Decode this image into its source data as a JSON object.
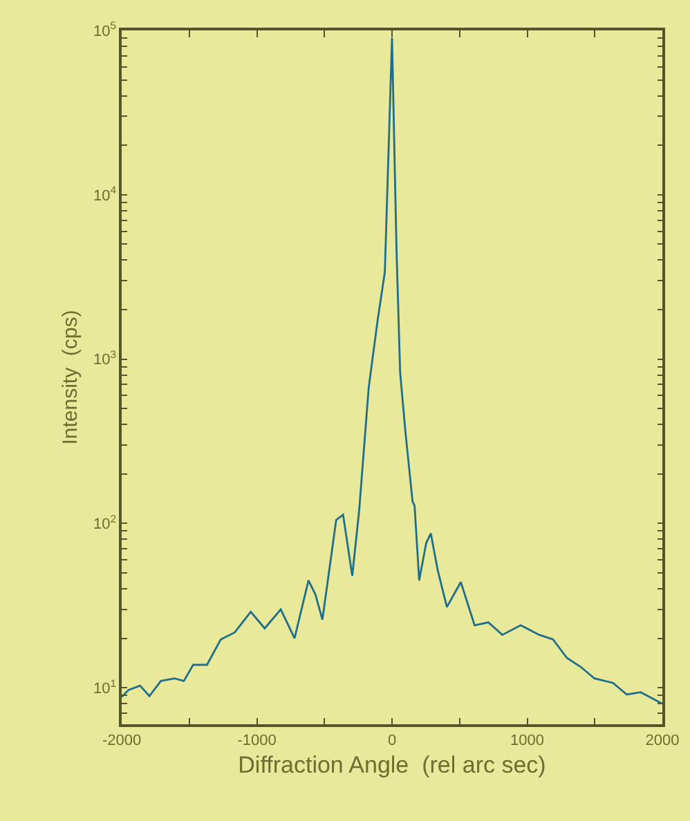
{
  "chart_data": {
    "type": "line",
    "xlabel": "Diffraction Angle  (rel arc sec)",
    "ylabel": "Intensity  (cps)",
    "log": "y",
    "grid": false,
    "legend": false,
    "marker": "none",
    "line_style": "solid",
    "x": [
      -2000,
      -1949,
      -1864,
      -1795,
      -1710,
      -1608,
      -1540,
      -1471,
      -1369,
      -1267,
      -1164,
      -1045,
      -942,
      -823,
      -721,
      -618,
      -567,
      -515,
      -413,
      -362,
      -294,
      -243,
      -172,
      -104,
      -53,
      0,
      33,
      60,
      100,
      152,
      167,
      201,
      253,
      287,
      338,
      406,
      509,
      611,
      713,
      816,
      952,
      1089,
      1191,
      1294,
      1396,
      1498,
      1635,
      1737,
      1840,
      2000
    ],
    "series": [
      {
        "color": "#1f6f8b",
        "values": [
          8.8,
          9.7,
          10.3,
          8.9,
          11.0,
          11.4,
          11.0,
          13.8,
          13.8,
          19.7,
          21.7,
          29,
          23,
          30,
          20,
          45,
          37,
          26,
          105,
          113,
          48,
          120,
          676,
          1780,
          3390,
          90000,
          4700,
          830,
          355,
          136,
          128,
          45,
          76,
          87,
          52,
          31,
          44,
          24,
          25,
          21,
          24,
          21,
          19.7,
          15.2,
          13.4,
          11.4,
          10.7,
          9.1,
          9.4,
          8.0
        ]
      }
    ],
    "xlim": [
      -2000,
      2000
    ],
    "xticks": [
      -2000,
      {
        "value": -1500,
        "label": null
      },
      -1000,
      {
        "value": -500,
        "label": null
      },
      0,
      {
        "value": 500,
        "label": null
      },
      1000,
      {
        "value": 1500,
        "label": null
      },
      2000
    ],
    "ylim": [
      6,
      100000
    ],
    "yticks": [
      {
        "value": 6,
        "label": null
      },
      {
        "value": 7,
        "label": null
      },
      {
        "value": 8,
        "label": null
      },
      {
        "value": 9,
        "label": null
      },
      {
        "value": 10,
        "label": "10$^{1}$"
      },
      {
        "value": 20,
        "label": null
      },
      {
        "value": 30,
        "label": null
      },
      {
        "value": 40,
        "label": null
      },
      {
        "value": 50,
        "label": null
      },
      {
        "value": 60,
        "label": null
      },
      {
        "value": 70,
        "label": null
      },
      {
        "value": 80,
        "label": null
      },
      {
        "value": 90,
        "label": null
      },
      {
        "value": 100,
        "label": "10$^{2}$"
      },
      {
        "value": 200,
        "label": null
      },
      {
        "value": 300,
        "label": null
      },
      {
        "value": 400,
        "label": null
      },
      {
        "value": 500,
        "label": null
      },
      {
        "value": 600,
        "label": null
      },
      {
        "value": 700,
        "label": null
      },
      {
        "value": 800,
        "label": null
      },
      {
        "value": 900,
        "label": null
      },
      {
        "value": 1000,
        "label": "10$^{3}$"
      },
      {
        "value": 2000,
        "label": null
      },
      {
        "value": 3000,
        "label": null
      },
      {
        "value": 4000,
        "label": null
      },
      {
        "value": 5000,
        "label": null
      },
      {
        "value": 6000,
        "label": null
      },
      {
        "value": 7000,
        "label": null
      },
      {
        "value": 8000,
        "label": null
      },
      {
        "value": 9000,
        "label": null
      },
      {
        "value": 10000,
        "label": "10$^{4}$"
      },
      {
        "value": 20000,
        "label": null
      },
      {
        "value": 30000,
        "label": null
      },
      {
        "value": 40000,
        "label": null
      },
      {
        "value": 50000,
        "label": null
      },
      {
        "value": 60000,
        "label": null
      },
      {
        "value": 70000,
        "label": null
      },
      {
        "value": 80000,
        "label": null
      },
      {
        "value": 90000,
        "label": null
      },
      {
        "value": 100000,
        "label": "10$^{5}$"
      }
    ]
  }
}
